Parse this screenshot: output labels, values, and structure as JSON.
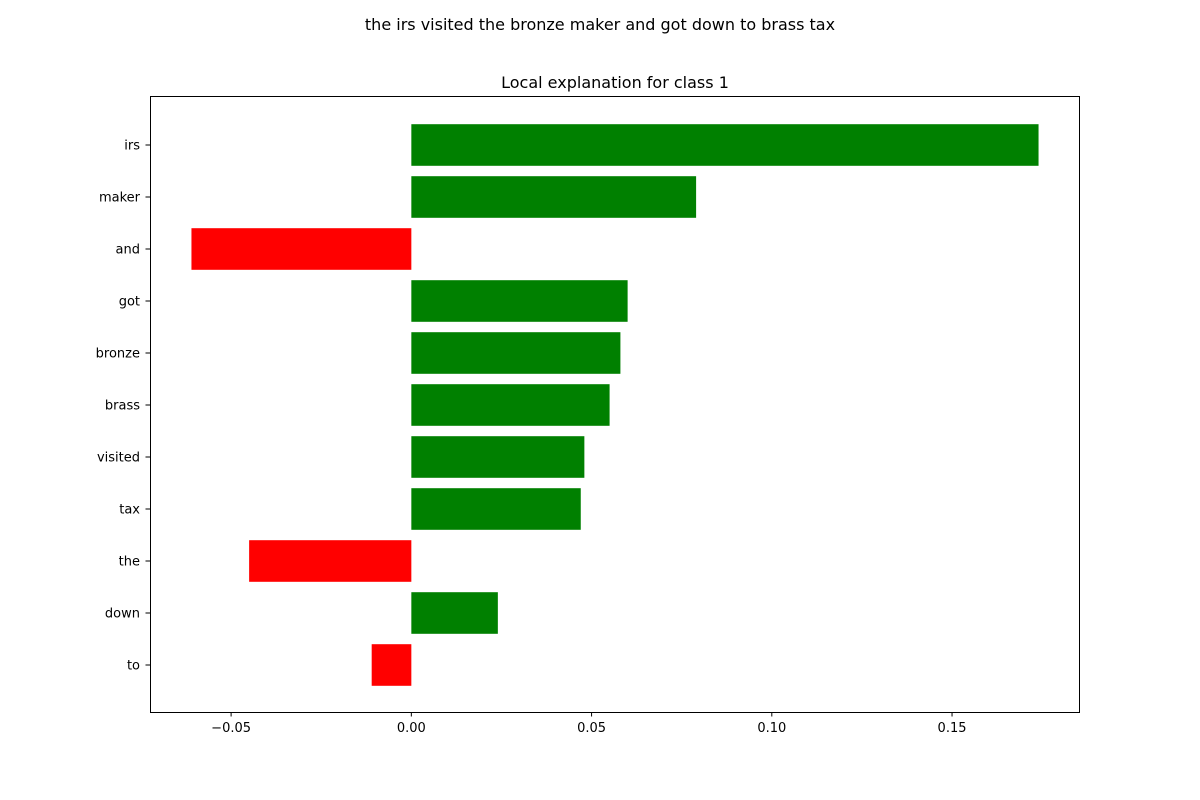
{
  "figure": {
    "suptitle": "the irs visited the bronze maker and got down to brass tax"
  },
  "colors": {
    "positive": "#008000",
    "negative": "#ff0000",
    "axis": "#000000",
    "background": "#ffffff"
  },
  "chart_data": {
    "type": "bar",
    "orientation": "horizontal",
    "title": "Local explanation for class 1",
    "xlabel": "",
    "ylabel": "",
    "categories": [
      "irs",
      "maker",
      "and",
      "got",
      "bronze",
      "brass",
      "visited",
      "tax",
      "the",
      "down",
      "to"
    ],
    "values": [
      0.174,
      0.079,
      -0.061,
      0.06,
      0.058,
      0.055,
      0.048,
      0.047,
      -0.045,
      0.024,
      -0.011
    ],
    "xlim": [
      -0.0725,
      0.1855
    ],
    "xticks": [
      -0.05,
      0.0,
      0.05,
      0.1,
      0.15
    ],
    "xtick_labels": [
      "−0.05",
      "0.00",
      "0.05",
      "0.10",
      "0.15"
    ],
    "grid": false,
    "legend": "none"
  }
}
